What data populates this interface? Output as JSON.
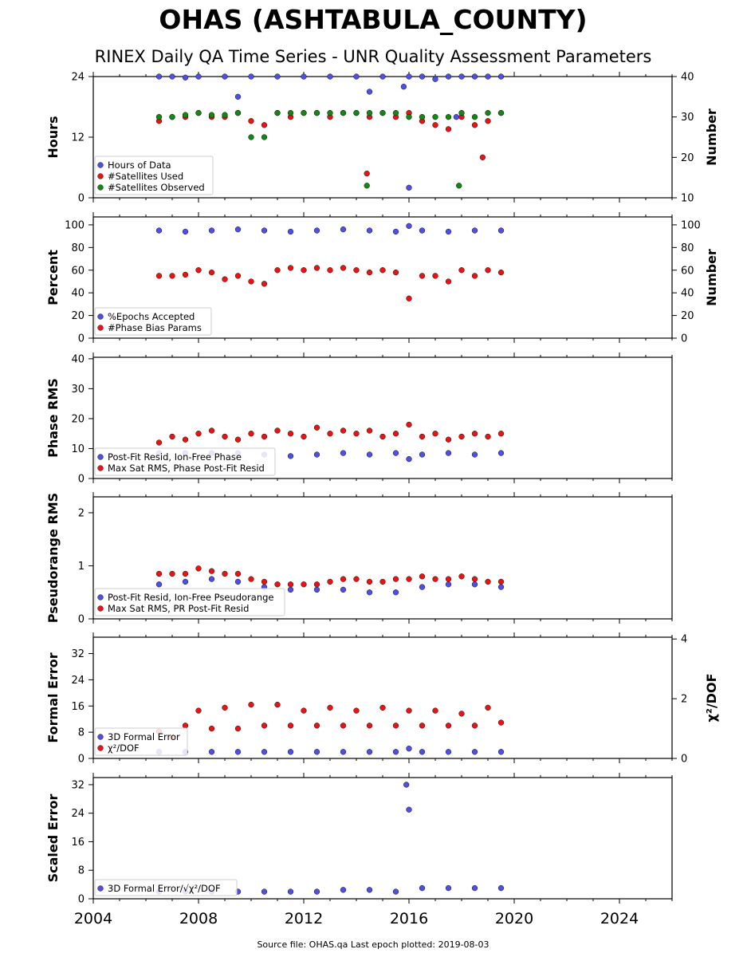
{
  "title": "OHAS (ASHTABULA_COUNTY)",
  "subtitle": "RINEX Daily QA Time Series - UNR Quality Assessment Parameters",
  "footer": "Source file: OHAS.qa Last epoch plotted: 2019-08-03",
  "colors": {
    "blue": "#4f4fe8",
    "red": "#ee1111",
    "green": "#118811"
  },
  "chart_data": [
    {
      "type": "scatter",
      "xlabel": "",
      "ylabel": "Hours",
      "ylabel_right": "Number",
      "xlim": [
        2004,
        2026
      ],
      "ylim": [
        0,
        24
      ],
      "ylim_right": [
        10,
        40
      ],
      "yticks": [
        "0",
        "12",
        "24"
      ],
      "yticks_right": [
        "10",
        "20",
        "30",
        "40"
      ],
      "legend_position": "lower-left",
      "series": [
        {
          "name": "Hours of Data",
          "axis": "left",
          "x": [
            2006.5,
            2007.0,
            2007.5,
            2008.0,
            2009.0,
            2010.0,
            2011.0,
            2012.0,
            2013.0,
            2014.0,
            2015.0,
            2015.8,
            2016.0,
            2016.5,
            2017.0,
            2017.5,
            2018.0,
            2018.5,
            2019.0,
            2019.5,
            2009.5,
            2014.5,
            2016.0,
            2017.8
          ],
          "y": [
            24,
            24,
            23.8,
            24,
            24,
            24,
            24,
            24,
            24,
            24,
            24,
            22,
            24,
            24,
            23.5,
            24,
            24,
            24,
            24,
            24,
            20,
            21,
            2,
            16
          ]
        },
        {
          "name": "#Satellites Used",
          "axis": "right",
          "x": [
            2006.5,
            2007.0,
            2007.5,
            2008.0,
            2008.5,
            2009.0,
            2009.5,
            2010.0,
            2010.5,
            2011.0,
            2011.5,
            2012.0,
            2012.5,
            2013.0,
            2013.5,
            2014.0,
            2014.5,
            2015.0,
            2015.5,
            2016.0,
            2016.5,
            2017.0,
            2017.5,
            2018.0,
            2018.5,
            2019.0,
            2019.5,
            2014.4,
            2018.8
          ],
          "y": [
            29,
            30,
            30,
            31,
            30,
            30,
            31,
            29,
            28,
            31,
            30,
            31,
            31,
            30,
            31,
            31,
            30,
            31,
            30,
            31,
            29,
            28,
            27,
            30,
            28,
            29,
            31,
            16,
            20
          ]
        },
        {
          "name": "#Satellites Observed",
          "axis": "right",
          "x": [
            2006.5,
            2007.0,
            2007.5,
            2008.0,
            2008.5,
            2009.0,
            2009.5,
            2010.0,
            2010.5,
            2011.0,
            2011.5,
            2012.0,
            2012.5,
            2013.0,
            2013.5,
            2014.0,
            2014.5,
            2015.0,
            2015.5,
            2016.0,
            2016.5,
            2017.0,
            2017.5,
            2018.0,
            2018.5,
            2019.0,
            2019.5,
            2014.4,
            2017.9
          ],
          "y": [
            30,
            30,
            30.5,
            31,
            30.5,
            30.5,
            31,
            25,
            25,
            31,
            31,
            31,
            31,
            31,
            31,
            31,
            31,
            31,
            31,
            30,
            30,
            30,
            30,
            31,
            30,
            31,
            31,
            13,
            13
          ]
        }
      ]
    },
    {
      "type": "scatter",
      "ylabel": "Percent",
      "ylabel_right": "Number",
      "xlim": [
        2004,
        2026
      ],
      "ylim": [
        0,
        107
      ],
      "ylim_right": [
        0,
        107
      ],
      "yticks": [
        "0",
        "20",
        "40",
        "60",
        "80",
        "100"
      ],
      "yticks_right": [
        "0",
        "20",
        "40",
        "60",
        "80",
        "100"
      ],
      "legend_position": "lower-left",
      "series": [
        {
          "name": "%Epochs Accepted",
          "axis": "left",
          "x": [
            2006.5,
            2007.5,
            2008.5,
            2009.5,
            2010.5,
            2011.5,
            2012.5,
            2013.5,
            2014.5,
            2015.5,
            2016.0,
            2016.5,
            2017.5,
            2018.5,
            2019.5
          ],
          "y": [
            95,
            94,
            95,
            96,
            95,
            94,
            95,
            96,
            95,
            94,
            99,
            95,
            94,
            95,
            95
          ]
        },
        {
          "name": "#Phase Bias Params",
          "axis": "right",
          "x": [
            2006.5,
            2007.0,
            2007.5,
            2008.0,
            2008.5,
            2009.0,
            2009.5,
            2010.0,
            2010.5,
            2011.0,
            2011.5,
            2012.0,
            2012.5,
            2013.0,
            2013.5,
            2014.0,
            2014.5,
            2015.0,
            2015.5,
            2016.0,
            2016.5,
            2017.0,
            2017.5,
            2018.0,
            2018.5,
            2019.0,
            2019.5
          ],
          "y": [
            55,
            55,
            56,
            60,
            58,
            52,
            55,
            50,
            48,
            60,
            62,
            60,
            62,
            60,
            62,
            60,
            58,
            60,
            58,
            35,
            55,
            55,
            50,
            60,
            55,
            60,
            58
          ]
        }
      ]
    },
    {
      "type": "scatter",
      "ylabel": "Phase RMS",
      "xlim": [
        2004,
        2026
      ],
      "ylim": [
        0,
        40.5
      ],
      "yticks": [
        "0",
        "10",
        "20",
        "30",
        "40"
      ],
      "legend_position": "lower-left",
      "series": [
        {
          "name": "Post-Fit Resid, Ion-Free Phase",
          "x": [
            2006.5,
            2007.5,
            2008.5,
            2009.5,
            2010.5,
            2011.5,
            2012.5,
            2013.5,
            2014.5,
            2015.5,
            2016.0,
            2016.5,
            2017.5,
            2018.5,
            2019.5
          ],
          "y": [
            8.5,
            8.5,
            8.5,
            8.5,
            8,
            7.5,
            8,
            8.5,
            8,
            8.5,
            6.5,
            8,
            8.5,
            8,
            8.5
          ]
        },
        {
          "name": "Max Sat RMS, Phase Post-Fit Resid",
          "x": [
            2006.5,
            2007.0,
            2007.5,
            2008.0,
            2008.5,
            2009.0,
            2009.5,
            2010.0,
            2010.5,
            2011.0,
            2011.5,
            2012.0,
            2012.5,
            2013.0,
            2013.5,
            2014.0,
            2014.5,
            2015.0,
            2015.5,
            2016.0,
            2016.5,
            2017.0,
            2017.5,
            2018.0,
            2018.5,
            2019.0,
            2019.5
          ],
          "y": [
            12,
            14,
            13,
            15,
            16,
            14,
            13,
            15,
            14,
            16,
            15,
            14,
            17,
            15,
            16,
            15,
            16,
            14,
            15,
            18,
            14,
            15,
            13,
            14,
            15,
            14,
            15
          ]
        }
      ]
    },
    {
      "type": "scatter",
      "ylabel": "Pseudorange RMS",
      "xlim": [
        2004,
        2026
      ],
      "ylim": [
        0,
        2.3
      ],
      "yticks": [
        "0",
        "1",
        "2"
      ],
      "legend_position": "lower-left",
      "series": [
        {
          "name": "Post-Fit Resid, Ion-Free Pseudorange",
          "x": [
            2006.5,
            2007.5,
            2008.5,
            2009.5,
            2010.5,
            2011.5,
            2012.5,
            2013.5,
            2014.5,
            2015.5,
            2016.5,
            2017.5,
            2018.5,
            2019.5
          ],
          "y": [
            0.65,
            0.7,
            0.75,
            0.7,
            0.6,
            0.55,
            0.55,
            0.55,
            0.5,
            0.5,
            0.6,
            0.65,
            0.65,
            0.6
          ]
        },
        {
          "name": "Max Sat RMS, PR Post-Fit Resid",
          "x": [
            2006.5,
            2007.0,
            2007.5,
            2008.0,
            2008.5,
            2009.0,
            2009.5,
            2010.0,
            2010.5,
            2011.0,
            2011.5,
            2012.0,
            2012.5,
            2013.0,
            2013.5,
            2014.0,
            2014.5,
            2015.0,
            2015.5,
            2016.0,
            2016.5,
            2017.0,
            2017.5,
            2018.0,
            2018.5,
            2019.0,
            2019.5
          ],
          "y": [
            0.85,
            0.85,
            0.85,
            0.95,
            0.9,
            0.85,
            0.85,
            0.75,
            0.7,
            0.65,
            0.65,
            0.65,
            0.65,
            0.7,
            0.75,
            0.75,
            0.7,
            0.7,
            0.75,
            0.75,
            0.8,
            0.75,
            0.75,
            0.8,
            0.75,
            0.7,
            0.7
          ]
        }
      ]
    },
    {
      "type": "scatter",
      "ylabel": "Formal Error",
      "ylabel_right": "χ²/DOF",
      "xlim": [
        2004,
        2026
      ],
      "ylim": [
        0,
        37
      ],
      "ylim_right": [
        0,
        4.06
      ],
      "yticks": [
        "0",
        "8",
        "16",
        "24",
        "32"
      ],
      "yticks_right": [
        "0",
        "2",
        "4"
      ],
      "legend_position": "lower-left",
      "series": [
        {
          "name": "3D Formal Error",
          "axis": "left",
          "x": [
            2006.5,
            2007.5,
            2008.5,
            2009.5,
            2010.5,
            2011.5,
            2012.5,
            2013.5,
            2014.5,
            2015.5,
            2016.0,
            2016.5,
            2017.5,
            2018.5,
            2019.5
          ],
          "y": [
            2,
            2,
            2,
            2,
            2,
            2,
            2,
            2,
            2,
            2,
            3,
            2,
            2,
            2,
            2
          ]
        },
        {
          "name": "χ²/DOF",
          "axis": "right",
          "x": [
            2006.5,
            2007.0,
            2007.5,
            2008.0,
            2008.5,
            2009.0,
            2009.5,
            2010.0,
            2010.5,
            2011.0,
            2011.5,
            2012.0,
            2012.5,
            2013.0,
            2013.5,
            2014.0,
            2014.5,
            2015.0,
            2015.5,
            2016.0,
            2016.5,
            2017.0,
            2017.5,
            2018.0,
            2018.5,
            2019.0,
            2019.5
          ],
          "y": [
            0.9,
            0.7,
            1.1,
            1.6,
            1.0,
            1.7,
            1.0,
            1.8,
            1.1,
            1.8,
            1.1,
            1.6,
            1.1,
            1.7,
            1.1,
            1.6,
            1.1,
            1.7,
            1.1,
            1.6,
            1.1,
            1.6,
            1.1,
            1.5,
            1.1,
            1.7,
            1.2
          ]
        }
      ]
    },
    {
      "type": "scatter",
      "ylabel": "Scaled Error",
      "xlim": [
        2004,
        2026
      ],
      "ylim": [
        0,
        34
      ],
      "yticks": [
        "0",
        "8",
        "16",
        "24",
        "32"
      ],
      "xticks": [
        "2004",
        "2008",
        "2012",
        "2016",
        "2020",
        "2024"
      ],
      "legend_position": "lower-left",
      "series": [
        {
          "name": "3D Formal Error/√χ²/DOF",
          "x": [
            2006.5,
            2007.5,
            2008.5,
            2009.5,
            2010.5,
            2011.5,
            2012.5,
            2013.5,
            2014.5,
            2015.5,
            2015.9,
            2016.0,
            2016.5,
            2017.5,
            2018.5,
            2019.5
          ],
          "y": [
            2,
            2,
            2,
            2,
            2,
            2,
            2,
            2.5,
            2.5,
            2,
            32,
            25,
            3,
            3,
            3,
            3
          ]
        }
      ]
    }
  ]
}
